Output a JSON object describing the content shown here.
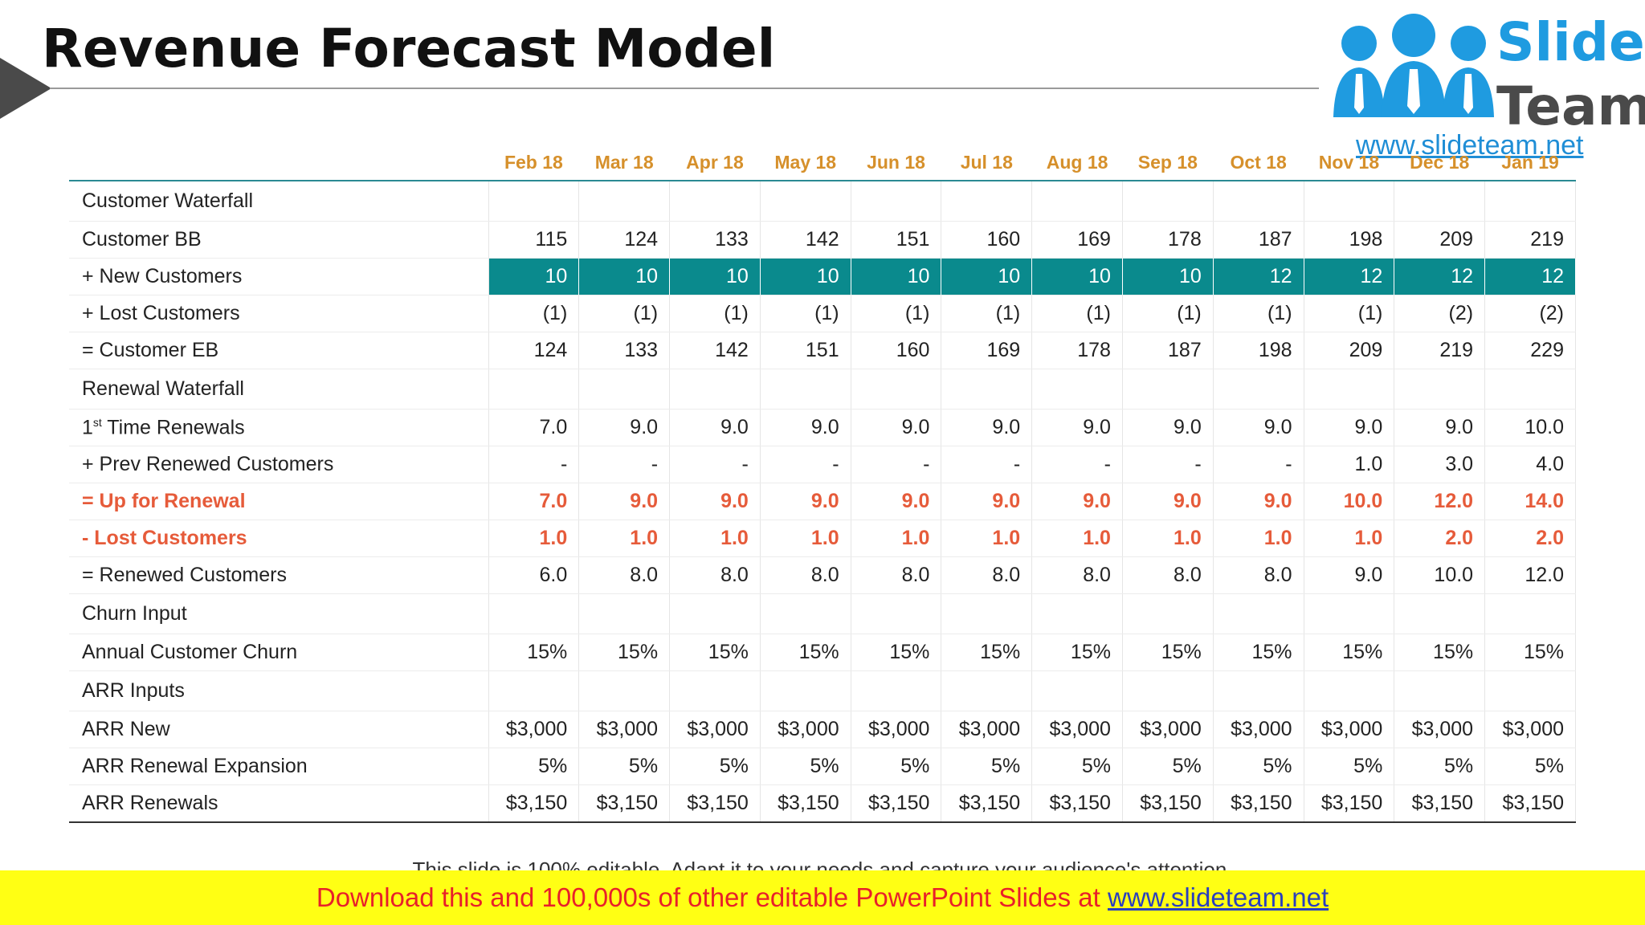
{
  "title": "Revenue Forecast Model",
  "logo": {
    "slide": "Slide",
    "team": "Team",
    "url": "www.slideteam.net"
  },
  "months": [
    "Feb 18",
    "Mar 18",
    "Apr 18",
    "May 18",
    "Jun 18",
    "Jul 18",
    "Aug 18",
    "Sep 18",
    "Oct 18",
    "Nov 18",
    "Dec 18",
    "Jan 19"
  ],
  "rows": [
    {
      "label": "Customer Waterfall",
      "type": "section",
      "values": []
    },
    {
      "label": "Customer BB",
      "type": "normal",
      "values": [
        "115",
        "124",
        "133",
        "142",
        "151",
        "160",
        "169",
        "178",
        "187",
        "198",
        "209",
        "219"
      ]
    },
    {
      "label": "+ New Customers",
      "type": "highlight",
      "values": [
        "10",
        "10",
        "10",
        "10",
        "10",
        "10",
        "10",
        "10",
        "12",
        "12",
        "12",
        "12"
      ]
    },
    {
      "label": "+ Lost Customers",
      "type": "normal",
      "values": [
        "(1)",
        "(1)",
        "(1)",
        "(1)",
        "(1)",
        "(1)",
        "(1)",
        "(1)",
        "(1)",
        "(1)",
        "(2)",
        "(2)"
      ]
    },
    {
      "label": "= Customer EB",
      "type": "normal",
      "values": [
        "124",
        "133",
        "142",
        "151",
        "160",
        "169",
        "178",
        "187",
        "198",
        "209",
        "219",
        "229"
      ]
    },
    {
      "label": "Renewal Waterfall",
      "type": "section",
      "values": []
    },
    {
      "label": "1",
      "sup": "st",
      "label_rest": " Time Renewals",
      "type": "normal",
      "values": [
        "7.0",
        "9.0",
        "9.0",
        "9.0",
        "9.0",
        "9.0",
        "9.0",
        "9.0",
        "9.0",
        "9.0",
        "9.0",
        "10.0"
      ]
    },
    {
      "label": "+ Prev Renewed Customers",
      "type": "normal",
      "values": [
        "-",
        "-",
        "-",
        "-",
        "-",
        "-",
        "-",
        "-",
        "-",
        "1.0",
        "3.0",
        "4.0"
      ]
    },
    {
      "label": "= Up for Renewal",
      "type": "red",
      "values": [
        "7.0",
        "9.0",
        "9.0",
        "9.0",
        "9.0",
        "9.0",
        "9.0",
        "9.0",
        "9.0",
        "10.0",
        "12.0",
        "14.0"
      ]
    },
    {
      "label": "- Lost Customers",
      "type": "red",
      "values": [
        "1.0",
        "1.0",
        "1.0",
        "1.0",
        "1.0",
        "1.0",
        "1.0",
        "1.0",
        "1.0",
        "1.0",
        "2.0",
        "2.0"
      ]
    },
    {
      "label": "= Renewed Customers",
      "type": "normal",
      "values": [
        "6.0",
        "8.0",
        "8.0",
        "8.0",
        "8.0",
        "8.0",
        "8.0",
        "8.0",
        "8.0",
        "9.0",
        "10.0",
        "12.0"
      ]
    },
    {
      "label": "Churn Input",
      "type": "section",
      "values": []
    },
    {
      "label": "Annual Customer Churn",
      "type": "normal",
      "values": [
        "15%",
        "15%",
        "15%",
        "15%",
        "15%",
        "15%",
        "15%",
        "15%",
        "15%",
        "15%",
        "15%",
        "15%"
      ]
    },
    {
      "label": "ARR Inputs",
      "type": "section",
      "values": []
    },
    {
      "label": "ARR New",
      "type": "normal",
      "values": [
        "$3,000",
        "$3,000",
        "$3,000",
        "$3,000",
        "$3,000",
        "$3,000",
        "$3,000",
        "$3,000",
        "$3,000",
        "$3,000",
        "$3,000",
        "$3,000"
      ]
    },
    {
      "label": "ARR Renewal Expansion",
      "type": "normal",
      "values": [
        "5%",
        "5%",
        "5%",
        "5%",
        "5%",
        "5%",
        "5%",
        "5%",
        "5%",
        "5%",
        "5%",
        "5%"
      ]
    },
    {
      "label": "ARR Renewals",
      "type": "normal",
      "values": [
        "$3,150",
        "$3,150",
        "$3,150",
        "$3,150",
        "$3,150",
        "$3,150",
        "$3,150",
        "$3,150",
        "$3,150",
        "$3,150",
        "$3,150",
        "$3,150"
      ]
    }
  ],
  "footer_note": "This slide is 100% editable. Adapt it to your needs and capture your audience's attention.",
  "banner": {
    "text": "Download this and 100,000s of other editable PowerPoint Slides at ",
    "url": "www.slideteam.net"
  },
  "colors": {
    "header_text": "#d6902b",
    "highlight_row": "#0a8a8d",
    "red_text": "#e65b3a",
    "banner_bg": "#ffff14"
  }
}
